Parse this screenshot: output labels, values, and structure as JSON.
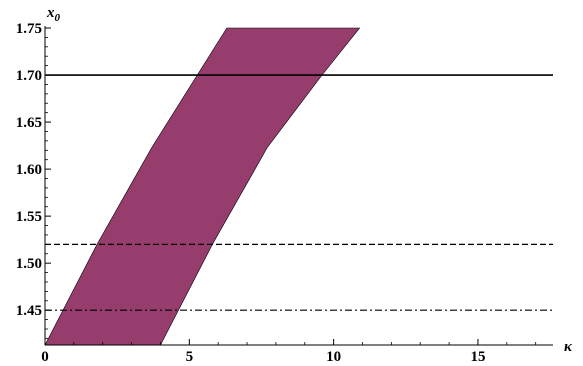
{
  "chart_data": {
    "type": "area",
    "xlabel": "κ",
    "ylabel": {
      "main": "x",
      "sub": "0"
    },
    "xlim": [
      0,
      17.6
    ],
    "ylim": [
      1.413,
      1.75
    ],
    "x_ticks": [
      0,
      5,
      10,
      15
    ],
    "x_tick_labels": [
      "0",
      "5",
      "10",
      "15"
    ],
    "y_ticks": [
      1.45,
      1.5,
      1.55,
      1.6,
      1.65,
      1.7,
      1.75
    ],
    "y_tick_labels": [
      "1.45",
      "1.50",
      "1.55",
      "1.60",
      "1.65",
      "1.70",
      "1.75"
    ],
    "grid": false,
    "region": {
      "color": "#963d6e",
      "left_boundary": [
        {
          "x": 0.0,
          "y": 1.413
        },
        {
          "x": 1.8,
          "y": 1.52
        },
        {
          "x": 3.7,
          "y": 1.623
        },
        {
          "x": 6.3,
          "y": 1.75
        }
      ],
      "right_boundary": [
        {
          "x": 10.9,
          "y": 1.75
        },
        {
          "x": 9.6,
          "y": 1.7
        },
        {
          "x": 7.7,
          "y": 1.623
        },
        {
          "x": 5.8,
          "y": 1.52
        },
        {
          "x": 4.0,
          "y": 1.413
        }
      ]
    },
    "reference_lines": [
      {
        "y": 1.7,
        "style": "solid"
      },
      {
        "y": 1.52,
        "style": "dashed"
      },
      {
        "y": 1.45,
        "style": "dashdot"
      }
    ]
  }
}
